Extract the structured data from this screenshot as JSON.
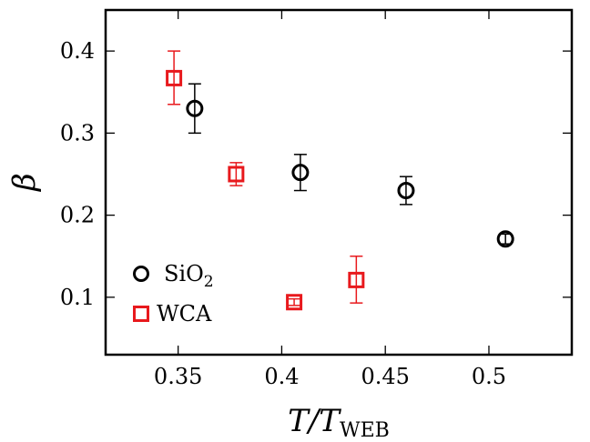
{
  "chart_data": {
    "type": "scatter",
    "title": "",
    "xlabel": "T/T_WEB",
    "ylabel": "β",
    "xlabel_parts": {
      "main": "T/T",
      "sub": "WEB"
    },
    "xlim": [
      0.315,
      0.54
    ],
    "ylim": [
      0.03,
      0.45
    ],
    "xticks": [
      0.35,
      0.4,
      0.45,
      0.5
    ],
    "xtick_labels": [
      "0.35",
      "0.4",
      "0.45",
      "0.5"
    ],
    "yticks": [
      0.1,
      0.2,
      0.3,
      0.4
    ],
    "ytick_labels": [
      "0.1",
      "0.2",
      "0.3",
      "0.4"
    ],
    "grid": false,
    "legend_position": "lower-left",
    "series": [
      {
        "name": "SiO2",
        "legend_parts": {
          "main": "SiO",
          "sub": "2"
        },
        "marker": "circle",
        "color": "#000000",
        "x": [
          0.358,
          0.409,
          0.46,
          0.508
        ],
        "y": [
          0.33,
          0.252,
          0.23,
          0.171
        ],
        "yerr_low": [
          0.3,
          0.23,
          0.213,
          0.165
        ],
        "yerr_high": [
          0.36,
          0.274,
          0.247,
          0.177
        ]
      },
      {
        "name": "WCA",
        "marker": "square",
        "color": "#e8191d",
        "x": [
          0.348,
          0.378,
          0.406,
          0.436
        ],
        "y": [
          0.367,
          0.25,
          0.094,
          0.121
        ],
        "yerr_low": [
          0.335,
          0.236,
          0.09,
          0.093
        ],
        "yerr_high": [
          0.4,
          0.264,
          0.098,
          0.15
        ]
      }
    ]
  }
}
